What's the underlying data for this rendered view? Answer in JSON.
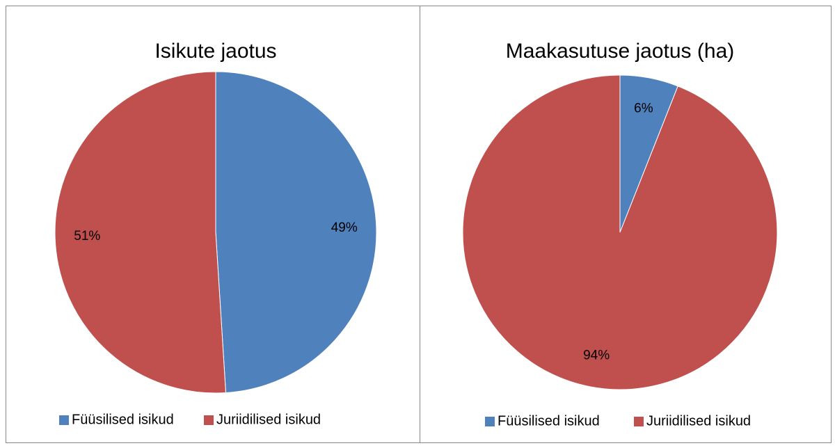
{
  "chart_data": [
    {
      "type": "pie",
      "title": "Isikute jaotus",
      "categories": [
        "Füüsilised isikud",
        "Juriidilised isikud"
      ],
      "values": [
        49,
        51
      ],
      "value_labels": [
        "49%",
        "51%"
      ],
      "colors": [
        "#4f81bd",
        "#c0504d"
      ],
      "legend": "bottom"
    },
    {
      "type": "pie",
      "title": "Maakasutuse jaotus (ha)",
      "categories": [
        "Füüsilised isikud",
        "Juriidilised isikud"
      ],
      "values": [
        6,
        94
      ],
      "value_labels": [
        "6%",
        "94%"
      ],
      "colors": [
        "#4f81bd",
        "#c0504d"
      ],
      "legend": "bottom"
    }
  ]
}
